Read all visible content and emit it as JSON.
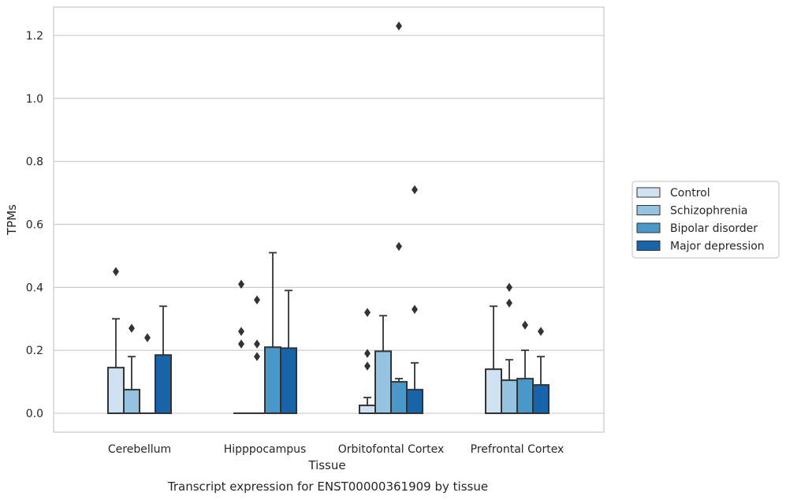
{
  "chart_data": {
    "type": "box",
    "xlabel": "Tissue",
    "ylabel": "TPMs",
    "caption": "Transcript expression for ENST00000361909 by tissue",
    "categories": [
      "Cerebellum",
      "Hipppocampus",
      "Orbitofontal Cortex",
      "Prefrontal Cortex"
    ],
    "ylim": [
      -0.06,
      1.29
    ],
    "yticks": [
      0.0,
      0.2,
      0.4,
      0.6,
      0.8,
      1.0,
      1.2
    ],
    "ytick_labels": [
      "0.0",
      "0.2",
      "0.4",
      "0.6",
      "0.8",
      "1.0",
      "1.2"
    ],
    "grid": true,
    "legend_position": "right",
    "series": [
      {
        "name": "Control",
        "color": "#d0e1f2",
        "boxes": [
          {
            "q1": 0.0,
            "median": 0.0,
            "q3": 0.145,
            "whisker_low": 0.0,
            "whisker_high": 0.3,
            "outliers": [
              0.45
            ]
          },
          {
            "q1": 0.0,
            "median": 0.0,
            "q3": 0.0,
            "whisker_low": 0.0,
            "whisker_high": 0.0,
            "outliers": [
              0.41,
              0.26,
              0.22
            ]
          },
          {
            "q1": 0.0,
            "median": 0.0,
            "q3": 0.025,
            "whisker_low": 0.0,
            "whisker_high": 0.05,
            "outliers": [
              0.32,
              0.19,
              0.15
            ]
          },
          {
            "q1": 0.0,
            "median": 0.0,
            "q3": 0.14,
            "whisker_low": 0.0,
            "whisker_high": 0.34,
            "outliers": []
          }
        ]
      },
      {
        "name": "Schizophrenia",
        "color": "#94c4df",
        "boxes": [
          {
            "q1": 0.0,
            "median": 0.0,
            "q3": 0.075,
            "whisker_low": 0.0,
            "whisker_high": 0.18,
            "outliers": [
              0.27
            ]
          },
          {
            "q1": 0.0,
            "median": 0.0,
            "q3": 0.0,
            "whisker_low": 0.0,
            "whisker_high": 0.0,
            "outliers": [
              0.36,
              0.22,
              0.18
            ]
          },
          {
            "q1": 0.0,
            "median": 0.0,
            "q3": 0.197,
            "whisker_low": 0.0,
            "whisker_high": 0.31,
            "outliers": []
          },
          {
            "q1": 0.0,
            "median": 0.0,
            "q3": 0.105,
            "whisker_low": 0.0,
            "whisker_high": 0.17,
            "outliers": [
              0.4,
              0.35
            ]
          }
        ]
      },
      {
        "name": "Bipolar disorder",
        "color": "#4a98c9",
        "boxes": [
          {
            "q1": 0.0,
            "median": 0.0,
            "q3": 0.0,
            "whisker_low": 0.0,
            "whisker_high": 0.0,
            "outliers": [
              0.24
            ]
          },
          {
            "q1": 0.0,
            "median": 0.0,
            "q3": 0.21,
            "whisker_low": 0.0,
            "whisker_high": 0.51,
            "outliers": []
          },
          {
            "q1": 0.0,
            "median": 0.0,
            "q3": 0.1,
            "whisker_low": 0.0,
            "whisker_high": 0.11,
            "outliers": [
              1.23,
              0.53
            ]
          },
          {
            "q1": 0.0,
            "median": 0.0,
            "q3": 0.11,
            "whisker_low": 0.0,
            "whisker_high": 0.2,
            "outliers": [
              0.28
            ]
          }
        ]
      },
      {
        "name": "Major depression",
        "color": "#1764ab",
        "boxes": [
          {
            "q1": 0.0,
            "median": 0.0,
            "q3": 0.185,
            "whisker_low": 0.0,
            "whisker_high": 0.34,
            "outliers": []
          },
          {
            "q1": 0.0,
            "median": 0.0,
            "q3": 0.207,
            "whisker_low": 0.0,
            "whisker_high": 0.39,
            "outliers": []
          },
          {
            "q1": 0.0,
            "median": 0.0,
            "q3": 0.075,
            "whisker_low": 0.0,
            "whisker_high": 0.16,
            "outliers": [
              0.71,
              0.33
            ]
          },
          {
            "q1": 0.0,
            "median": 0.0,
            "q3": 0.09,
            "whisker_low": 0.0,
            "whisker_high": 0.18,
            "outliers": [
              0.26
            ]
          }
        ]
      }
    ]
  },
  "colors": {
    "grid": "#cccccc",
    "frame": "#cccccc",
    "stroke": "#333333",
    "text": "#262626",
    "background": "#ffffff"
  }
}
